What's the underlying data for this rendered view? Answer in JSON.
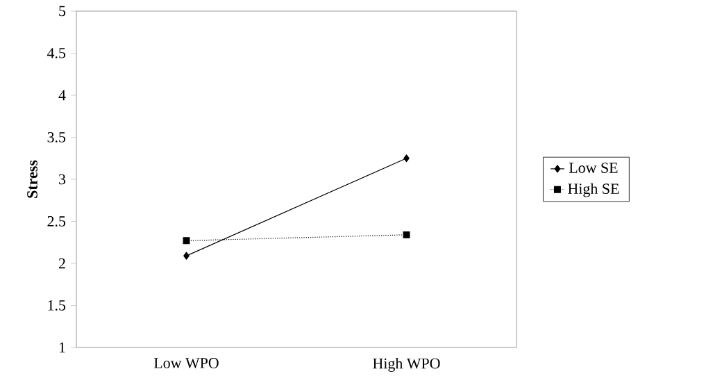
{
  "chart_data": {
    "type": "line",
    "ylabel": "Stress",
    "categories": [
      "Low WPO",
      "High WPO"
    ],
    "series": [
      {
        "name": "Low SE",
        "color": "#000000",
        "values": [
          2.09,
          3.25
        ],
        "marker": "diamond",
        "line_style": "solid"
      },
      {
        "name": "High SE",
        "color": "#000000",
        "values": [
          2.27,
          2.34
        ],
        "marker": "square",
        "line_style": "dotted"
      }
    ],
    "ylim": [
      1,
      5
    ],
    "yticks": [
      1,
      1.5,
      2,
      2.5,
      3,
      3.5,
      4,
      4.5,
      5
    ],
    "grid": false,
    "legend": "right"
  }
}
